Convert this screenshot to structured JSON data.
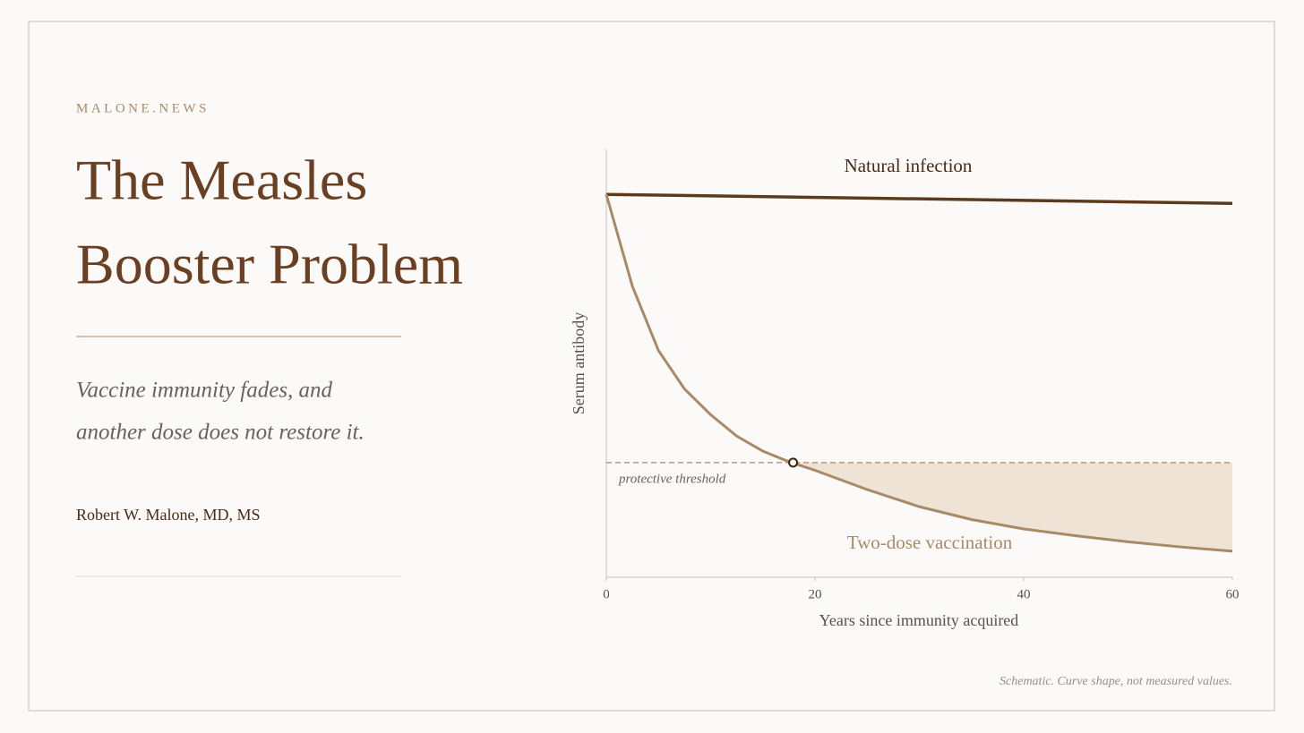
{
  "brand": "MALONE.NEWS",
  "title": [
    "The Measles",
    "Booster Problem"
  ],
  "subtitle": [
    "Vaccine immunity fades, and",
    "another dose does not restore it."
  ],
  "author": "Robert W. Malone, MD, MS",
  "footnote": "Schematic. Curve shape, not measured values.",
  "chart_data": {
    "type": "line",
    "x_label": "Years since immunity acquired",
    "y_label": "Serum antibody",
    "xlim": [
      0,
      60
    ],
    "xticks": [
      0,
      20,
      40,
      60
    ],
    "ylim": [
      0,
      100
    ],
    "series": [
      {
        "name": "Natural infection",
        "color": "#5c3a1e",
        "x": [
          0,
          60
        ],
        "values": [
          89.5,
          87.4
        ]
      },
      {
        "name": "Two-dose vaccination",
        "color": "#a88a68",
        "x": [
          0,
          2.5,
          5,
          7.5,
          10,
          12.5,
          15,
          17.5,
          20,
          25,
          30,
          35,
          40,
          45,
          50,
          55,
          60
        ],
        "values": [
          89.5,
          68,
          53,
          44,
          38,
          33,
          29.5,
          27,
          25,
          20.5,
          16.5,
          13.5,
          11.3,
          9.7,
          8.3,
          7.1,
          6.1
        ]
      }
    ],
    "threshold": {
      "label": "protective threshold",
      "value": 26.8,
      "color": "#a88a68"
    },
    "crossing": {
      "x": 17.9,
      "y": 26.8
    },
    "shortfall_color": "#efe3d6"
  }
}
